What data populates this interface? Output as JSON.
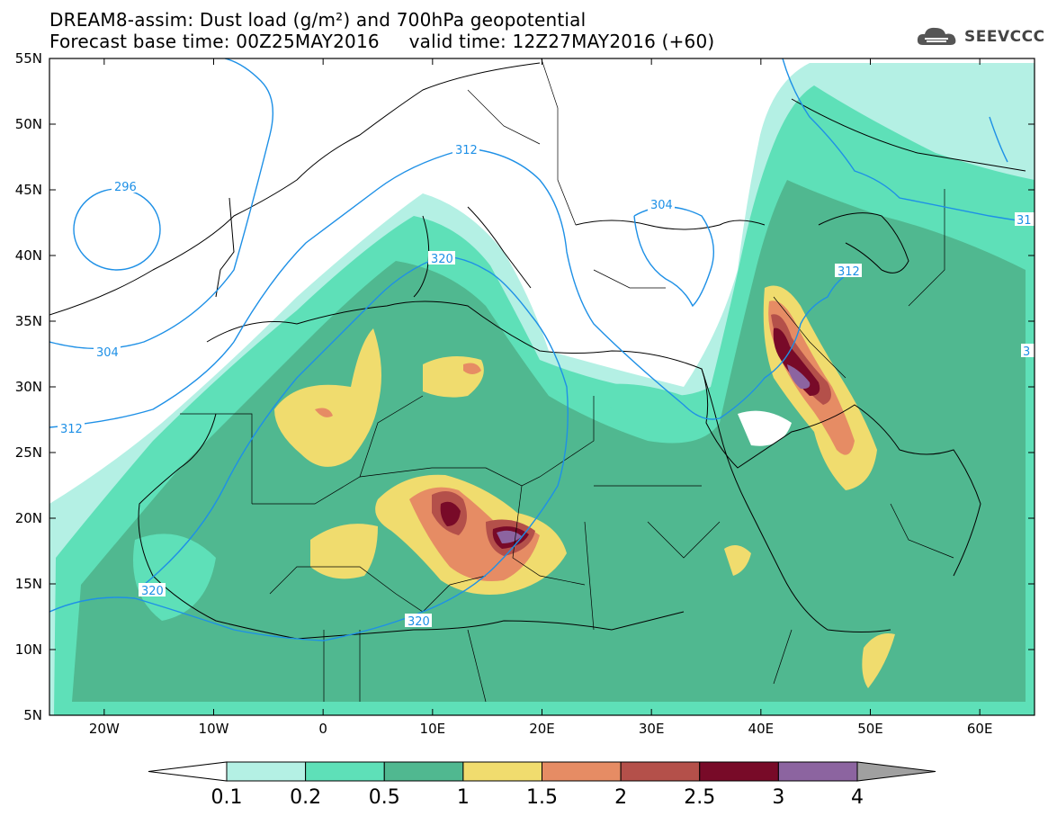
{
  "title": {
    "line1": "DREAM8-assim: Dust load (g/m²) and 700hPa geopotential",
    "line2": "Forecast base time: 00Z25MAY2016     valid time: 12Z27MAY2016 (+60)"
  },
  "logo": {
    "text": "SEEVCCC",
    "icon": "cloud-icon"
  },
  "map": {
    "lon_range": [
      -25,
      65
    ],
    "lat_range": [
      5,
      55
    ],
    "lat_ticks": [
      "55N",
      "50N",
      "45N",
      "40N",
      "35N",
      "30N",
      "25N",
      "20N",
      "15N",
      "10N",
      "5N"
    ],
    "lon_ticks": [
      "20W",
      "10W",
      "0",
      "10E",
      "20E",
      "30E",
      "40E",
      "50E",
      "60E"
    ]
  },
  "colorbar": {
    "labels": [
      "0.1",
      "0.2",
      "0.5",
      "1",
      "1.5",
      "2",
      "2.5",
      "3",
      "4"
    ],
    "colors": [
      "#ffffff",
      "#b4f0e4",
      "#5ee0b8",
      "#50b890",
      "#f0dc6e",
      "#e68c64",
      "#b4504a",
      "#780a28",
      "#8c64a0",
      "#a0a0a0"
    ]
  },
  "contours": [
    {
      "label": "296",
      "value": 296
    },
    {
      "label": "304",
      "value": 304
    },
    {
      "label": "312",
      "value": 312
    },
    {
      "label": "320",
      "value": 320
    }
  ],
  "contour_labels": [
    "296",
    "304",
    "312",
    "320",
    "312",
    "320",
    "320",
    "304",
    "312",
    "31",
    "3"
  ],
  "contour_color": "#1e90e6"
}
